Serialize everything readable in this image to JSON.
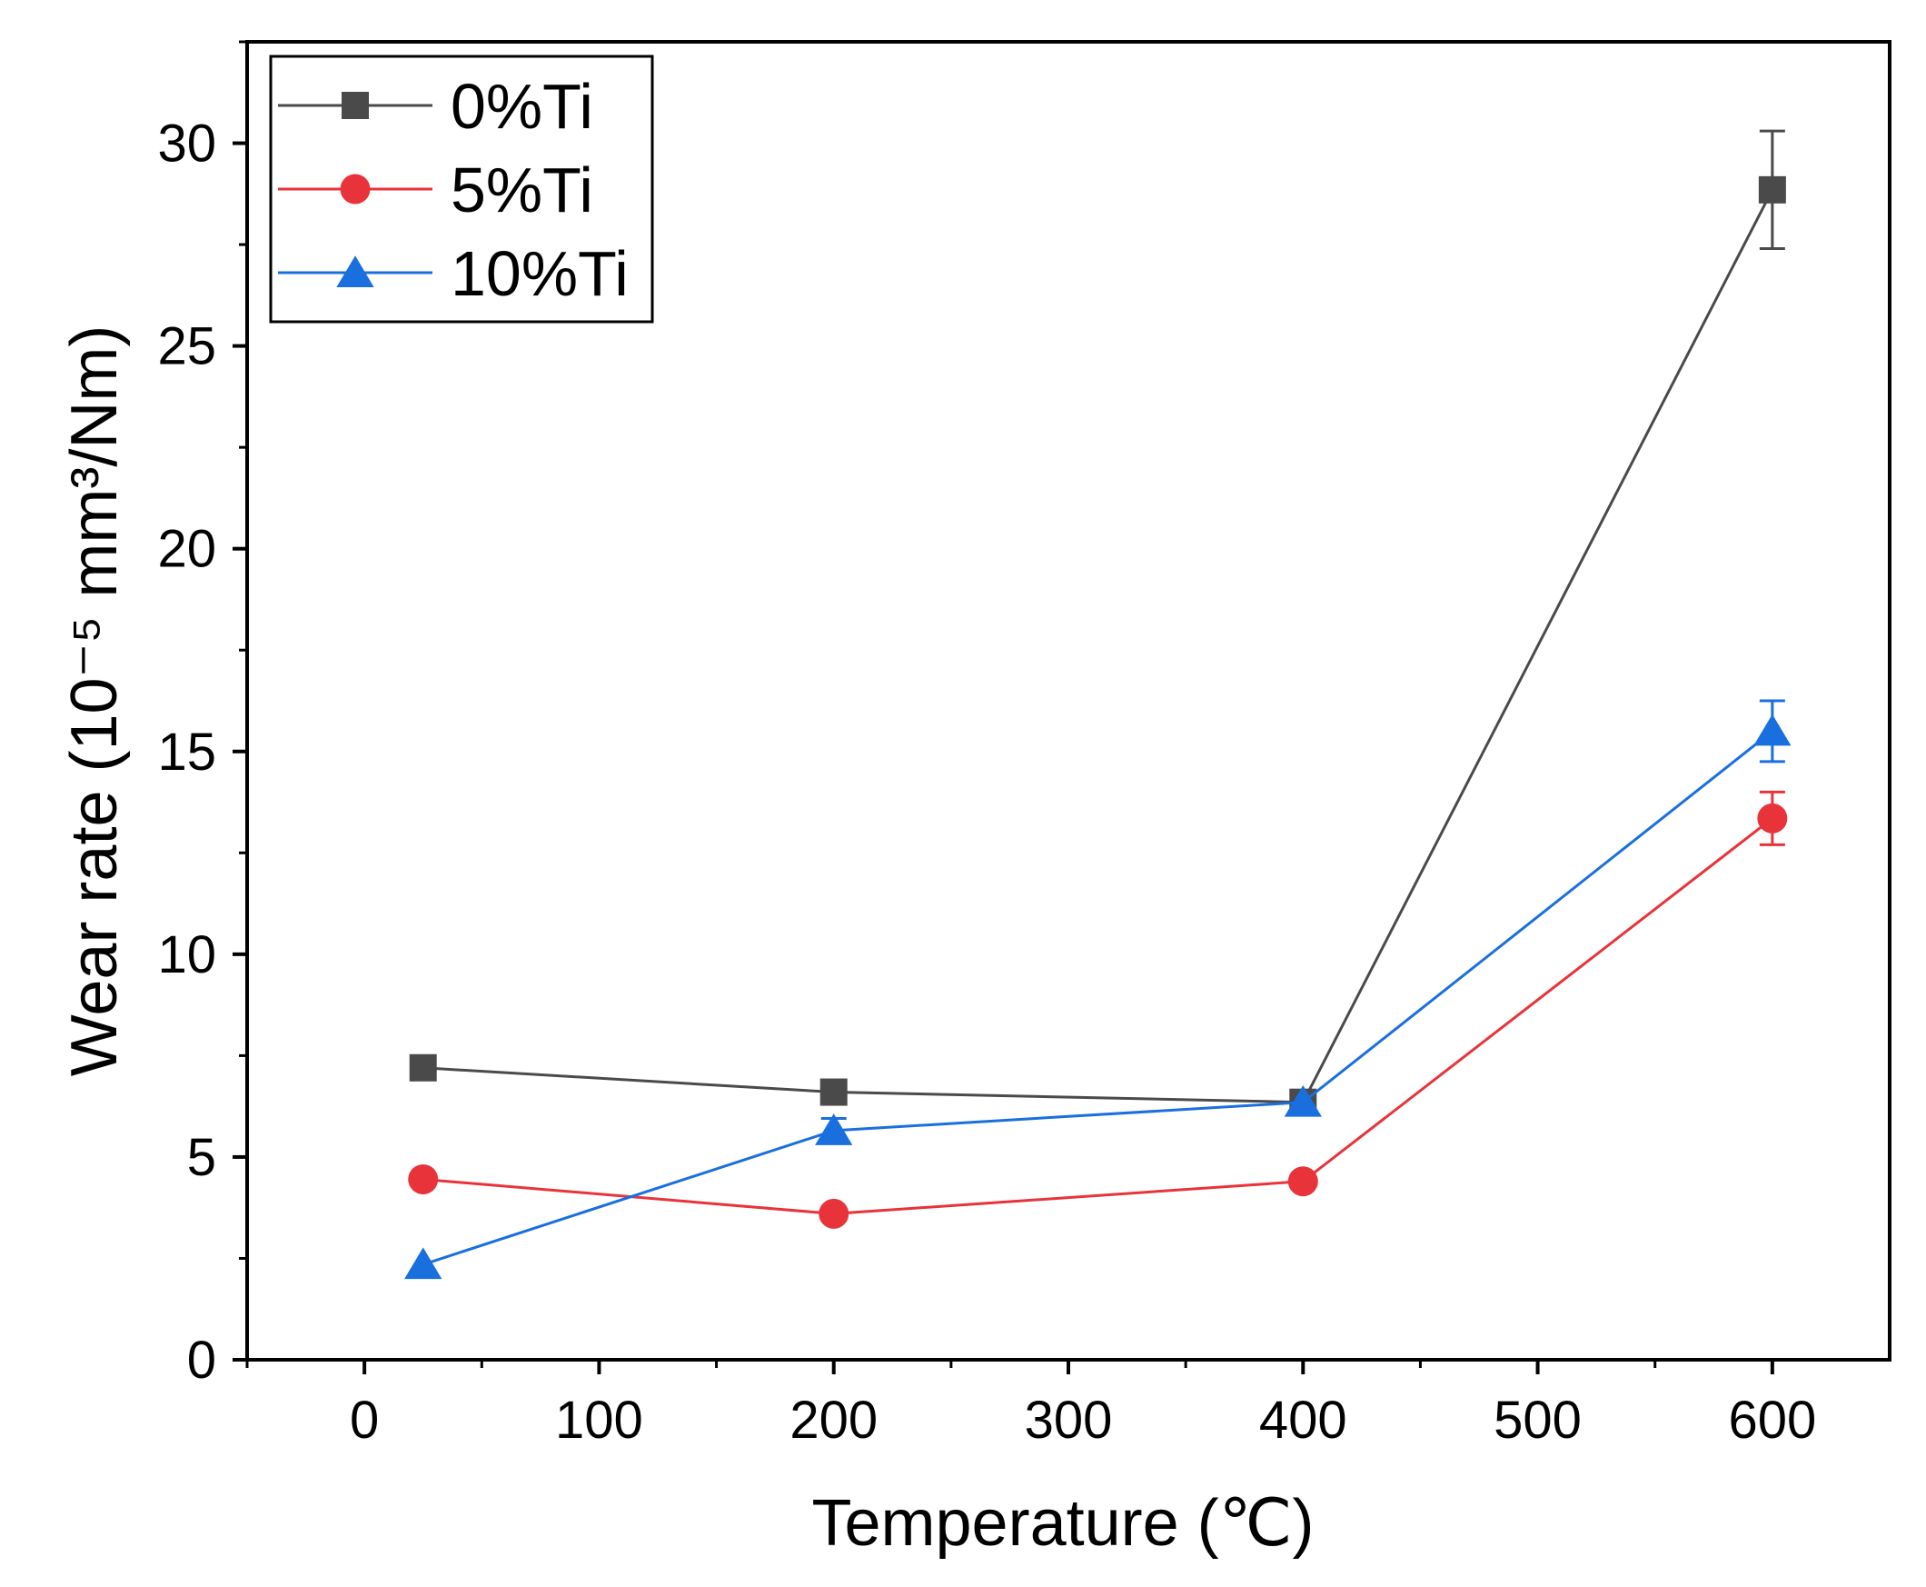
{
  "chart_data": {
    "type": "line",
    "xlabel": "Temperature (℃)",
    "ylabel": "Wear rate (10⁻⁵ mm³/Nm)",
    "xlim": [
      -50,
      650
    ],
    "ylim": [
      0,
      32.5
    ],
    "xticks": [
      0,
      100,
      200,
      300,
      400,
      500,
      600
    ],
    "yticks": [
      0,
      5,
      10,
      15,
      20,
      25,
      30
    ],
    "grid": false,
    "legend_position": "top-left",
    "series": [
      {
        "name": "0%Ti",
        "color": "#4a4a4a",
        "marker": "square",
        "x": [
          25,
          200,
          400,
          600
        ],
        "y": [
          7.2,
          6.6,
          6.35,
          28.85
        ],
        "err": [
          0,
          0,
          0,
          1.45
        ]
      },
      {
        "name": "5%Ti",
        "color": "#e8333a",
        "marker": "circle",
        "x": [
          25,
          200,
          400,
          600
        ],
        "y": [
          4.45,
          3.6,
          4.4,
          13.35
        ],
        "err": [
          0,
          0,
          0,
          0.65
        ]
      },
      {
        "name": "10%Ti",
        "color": "#1a6fdf",
        "marker": "triangle",
        "x": [
          25,
          200,
          400,
          600
        ],
        "y": [
          2.35,
          5.65,
          6.35,
          15.5
        ],
        "err": [
          0,
          0.3,
          0,
          0.75
        ]
      }
    ]
  }
}
